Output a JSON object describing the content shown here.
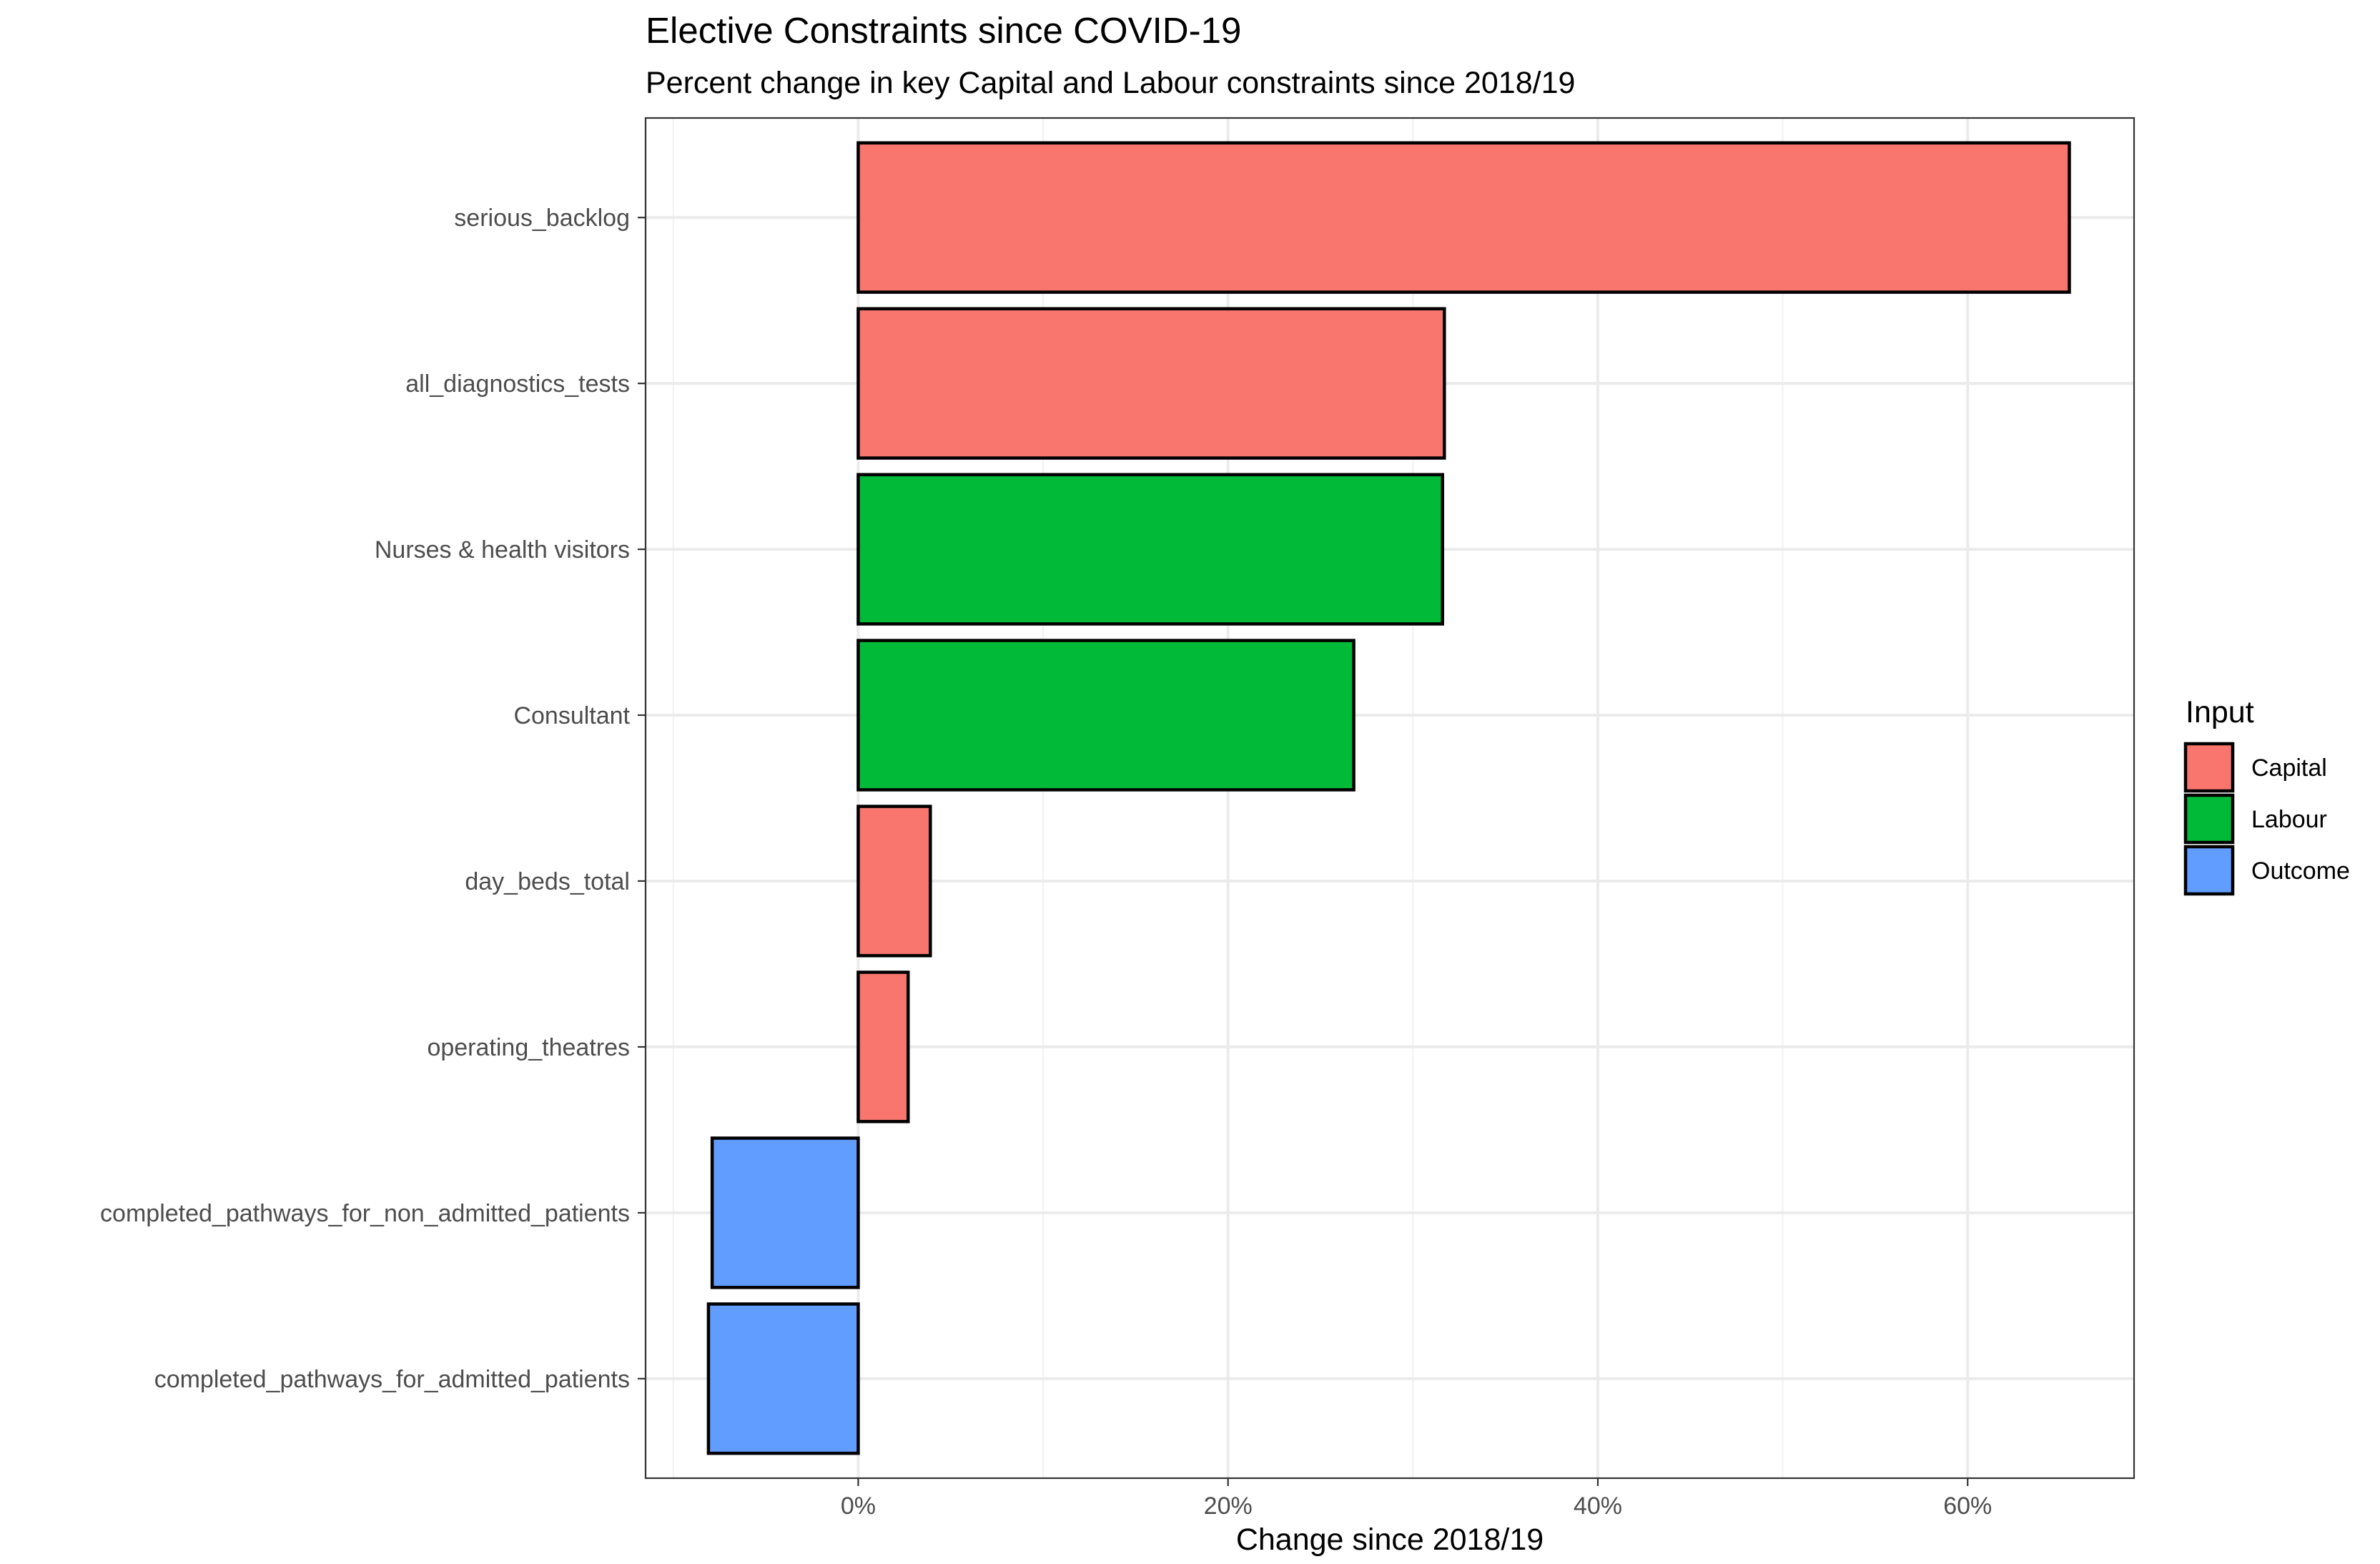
{
  "chart_data": {
    "type": "bar",
    "orientation": "horizontal",
    "title": "Elective Constraints since COVID-19",
    "subtitle": "Percent change in key Capital and Labour constraints since 2018/19",
    "xlabel": "Change since 2018/19",
    "ylabel": "",
    "xlim": [
      -0.115,
      0.69
    ],
    "xticks": [
      {
        "value": 0.0,
        "label": "0%"
      },
      {
        "value": 0.2,
        "label": "20%"
      },
      {
        "value": 0.4,
        "label": "40%"
      },
      {
        "value": 0.6,
        "label": "60%"
      }
    ],
    "grid": true,
    "legend": {
      "title": "Input",
      "position": "right",
      "entries": [
        {
          "name": "Capital",
          "color": "#F8766D"
        },
        {
          "name": "Labour",
          "color": "#00BA38"
        },
        {
          "name": "Outcome",
          "color": "#619CFF"
        }
      ]
    },
    "bars": [
      {
        "category": "serious_backlog",
        "value": 0.655,
        "group": "Capital"
      },
      {
        "category": "all_diagnostics_tests",
        "value": 0.317,
        "group": "Capital"
      },
      {
        "category": "Nurses & health visitors",
        "value": 0.316,
        "group": "Labour"
      },
      {
        "category": "Consultant",
        "value": 0.268,
        "group": "Labour"
      },
      {
        "category": "day_beds_total",
        "value": 0.039,
        "group": "Capital"
      },
      {
        "category": "operating_theatres",
        "value": 0.027,
        "group": "Capital"
      },
      {
        "category": "completed_pathways_for_non_admitted_patients",
        "value": -0.079,
        "group": "Outcome"
      },
      {
        "category": "completed_pathways_for_admitted_patients",
        "value": -0.081,
        "group": "Outcome"
      }
    ]
  }
}
